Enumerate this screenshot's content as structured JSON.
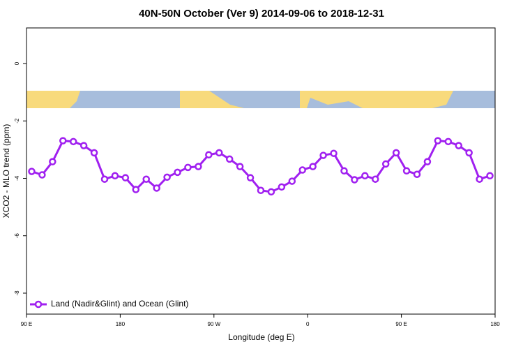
{
  "chart_data": {
    "type": "line",
    "title": "40N-50N October (Ver 9)   2014-09-06 to 2018-12-31",
    "x_label": "Longitude (deg E)",
    "y_label": "XCO2 - MLO trend (ppm)",
    "xlim": [
      90,
      540
    ],
    "ylim": [
      -8.73,
      1.24
    ],
    "xticks": [
      {
        "value": 90,
        "label": "90 E"
      },
      {
        "value": 180,
        "label": "180"
      },
      {
        "value": 270,
        "label": "90 W"
      },
      {
        "value": 360,
        "label": "0"
      },
      {
        "value": 450,
        "label": "90 E"
      },
      {
        "value": 540,
        "label": "180"
      }
    ],
    "yticks": [
      0,
      -2,
      -4,
      -6,
      -8
    ],
    "legend": "bottom-left",
    "x": [
      95,
      105,
      115,
      125,
      135,
      145,
      155,
      165,
      175,
      185,
      195,
      205,
      215,
      225,
      235,
      245,
      255,
      265,
      275,
      285,
      295,
      305,
      315,
      325,
      335,
      345,
      355,
      365,
      375,
      385,
      395,
      405,
      415,
      425,
      435,
      445,
      455,
      465,
      475,
      485,
      495,
      505,
      515,
      525,
      535
    ],
    "series": [
      {
        "name": "Land (Nadir&Glint) and Ocean (Glint)",
        "color": "#a020f0",
        "values": [
          -3.76,
          -3.88,
          -3.42,
          -2.69,
          -2.72,
          -2.86,
          -3.11,
          -4.03,
          -3.91,
          -3.98,
          -4.39,
          -4.03,
          -4.34,
          -3.96,
          -3.79,
          -3.62,
          -3.59,
          -3.18,
          -3.11,
          -3.33,
          -3.59,
          -3.98,
          -4.42,
          -4.47,
          -4.3,
          -4.1,
          -3.71,
          -3.59,
          -3.2,
          -3.13,
          -3.74,
          -4.05,
          -3.91,
          -4.03,
          -3.5,
          -3.11,
          -3.74,
          -3.86,
          -3.42,
          -2.69,
          -2.72,
          -2.86,
          -3.11,
          -4.03,
          -3.91
        ]
      }
    ]
  }
}
